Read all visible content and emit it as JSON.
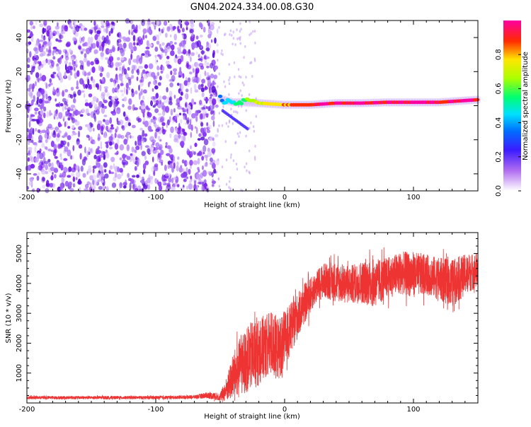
{
  "figure_title": "GN04.2024.334.00.08.G30",
  "chart_data": [
    {
      "type": "heatmap",
      "title": "",
      "xlabel": "Height of straight line (km)",
      "ylabel": "Frequency (Hz)",
      "xlim": [
        -200,
        150
      ],
      "ylim": [
        -50,
        50
      ],
      "xticks": [
        -200,
        -100,
        0,
        100
      ],
      "yticks": [
        -40,
        -20,
        0,
        20,
        40
      ],
      "colorbar": {
        "label": "Normalized spectral amplitude",
        "range": [
          0.0,
          1.0
        ],
        "ticks": [
          0.0,
          0.2,
          0.4,
          0.6,
          0.8
        ],
        "colors": [
          "#ffffff",
          "#a020f0",
          "#0000ff",
          "#00ffff",
          "#00ff00",
          "#ffff00",
          "#ff0000",
          "#ff00ff"
        ]
      },
      "features": {
        "noise_region_x": [
          -200,
          -50
        ],
        "noise_amplitude_approx": 0.1,
        "signal_tone": {
          "x": [
            -50,
            -40,
            -30,
            -20,
            -10,
            0,
            20,
            40,
            60,
            80,
            100,
            120,
            150
          ],
          "freq_hz": [
            4,
            2,
            2,
            1.5,
            1,
            0.5,
            0.5,
            1.5,
            1.5,
            2,
            2,
            2,
            3.5
          ],
          "amplitude": [
            0.35,
            0.45,
            0.6,
            0.7,
            0.75,
            0.8,
            0.9,
            0.95,
            0.9,
            0.95,
            0.95,
            0.95,
            0.95
          ]
        }
      }
    },
    {
      "type": "line",
      "title": "",
      "xlabel": "Height of straight line (km)",
      "ylabel": "SNR (10 * v/v)",
      "xlim": [
        -200,
        150
      ],
      "ylim": [
        0,
        5700
      ],
      "xticks": [
        -200,
        -100,
        0,
        100
      ],
      "yticks": [
        1000,
        2000,
        3000,
        4000,
        5000
      ],
      "series": [
        {
          "color": "#ee3333",
          "x": [
            -200,
            -150,
            -100,
            -70,
            -60,
            -50,
            -45,
            -40,
            -35,
            -30,
            -25,
            -20,
            -15,
            -10,
            -5,
            0,
            5,
            10,
            15,
            20,
            25,
            30,
            40,
            50,
            60,
            70,
            80,
            90,
            100,
            110,
            120,
            130,
            140,
            150
          ],
          "mean": [
            180,
            180,
            180,
            200,
            260,
            200,
            450,
            900,
            1200,
            1400,
            1600,
            1700,
            1900,
            2000,
            1800,
            2100,
            2500,
            2900,
            3300,
            3600,
            3900,
            4100,
            4050,
            3950,
            4050,
            4000,
            4200,
            4350,
            4300,
            4300,
            4150,
            4000,
            4300,
            4450
          ],
          "amp": [
            60,
            60,
            60,
            70,
            120,
            150,
            450,
            850,
            1050,
            1200,
            1300,
            1250,
            1200,
            1250,
            1150,
            1100,
            950,
            850,
            750,
            650,
            600,
            650,
            750,
            700,
            800,
            900,
            750,
            800,
            850,
            750,
            800,
            900,
            750,
            650
          ]
        }
      ]
    }
  ]
}
